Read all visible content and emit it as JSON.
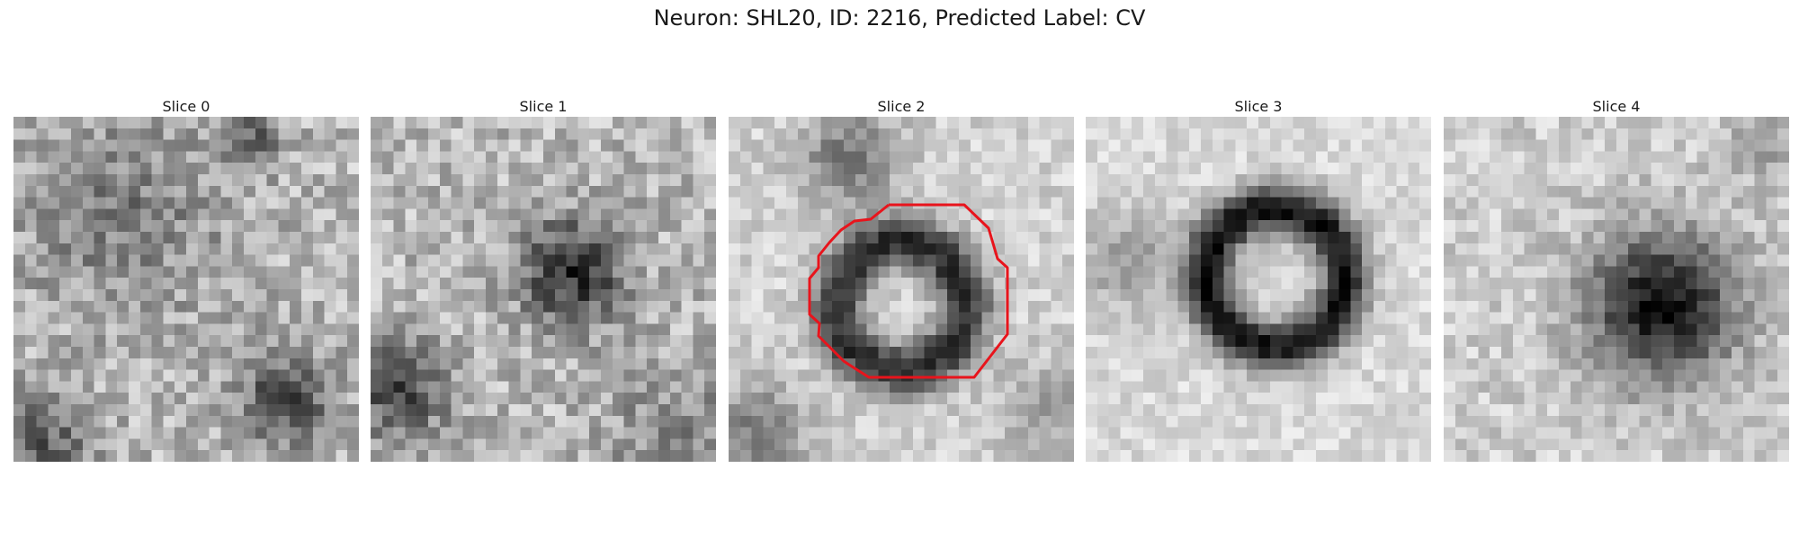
{
  "figure": {
    "title": "Neuron: SHL20, ID: 2216, Predicted Label: CV",
    "overlay_color": "#e8141c",
    "colormap": "gray",
    "panels": [
      {
        "title": "Slice 0",
        "pattern": "noisy-dark-corners"
      },
      {
        "title": "Slice 1",
        "pattern": "dark-blob-center"
      },
      {
        "title": "Slice 2",
        "pattern": "ring-with-outline"
      },
      {
        "title": "Slice 3",
        "pattern": "dark-ring"
      },
      {
        "title": "Slice 4",
        "pattern": "dark-blob-right"
      }
    ]
  }
}
